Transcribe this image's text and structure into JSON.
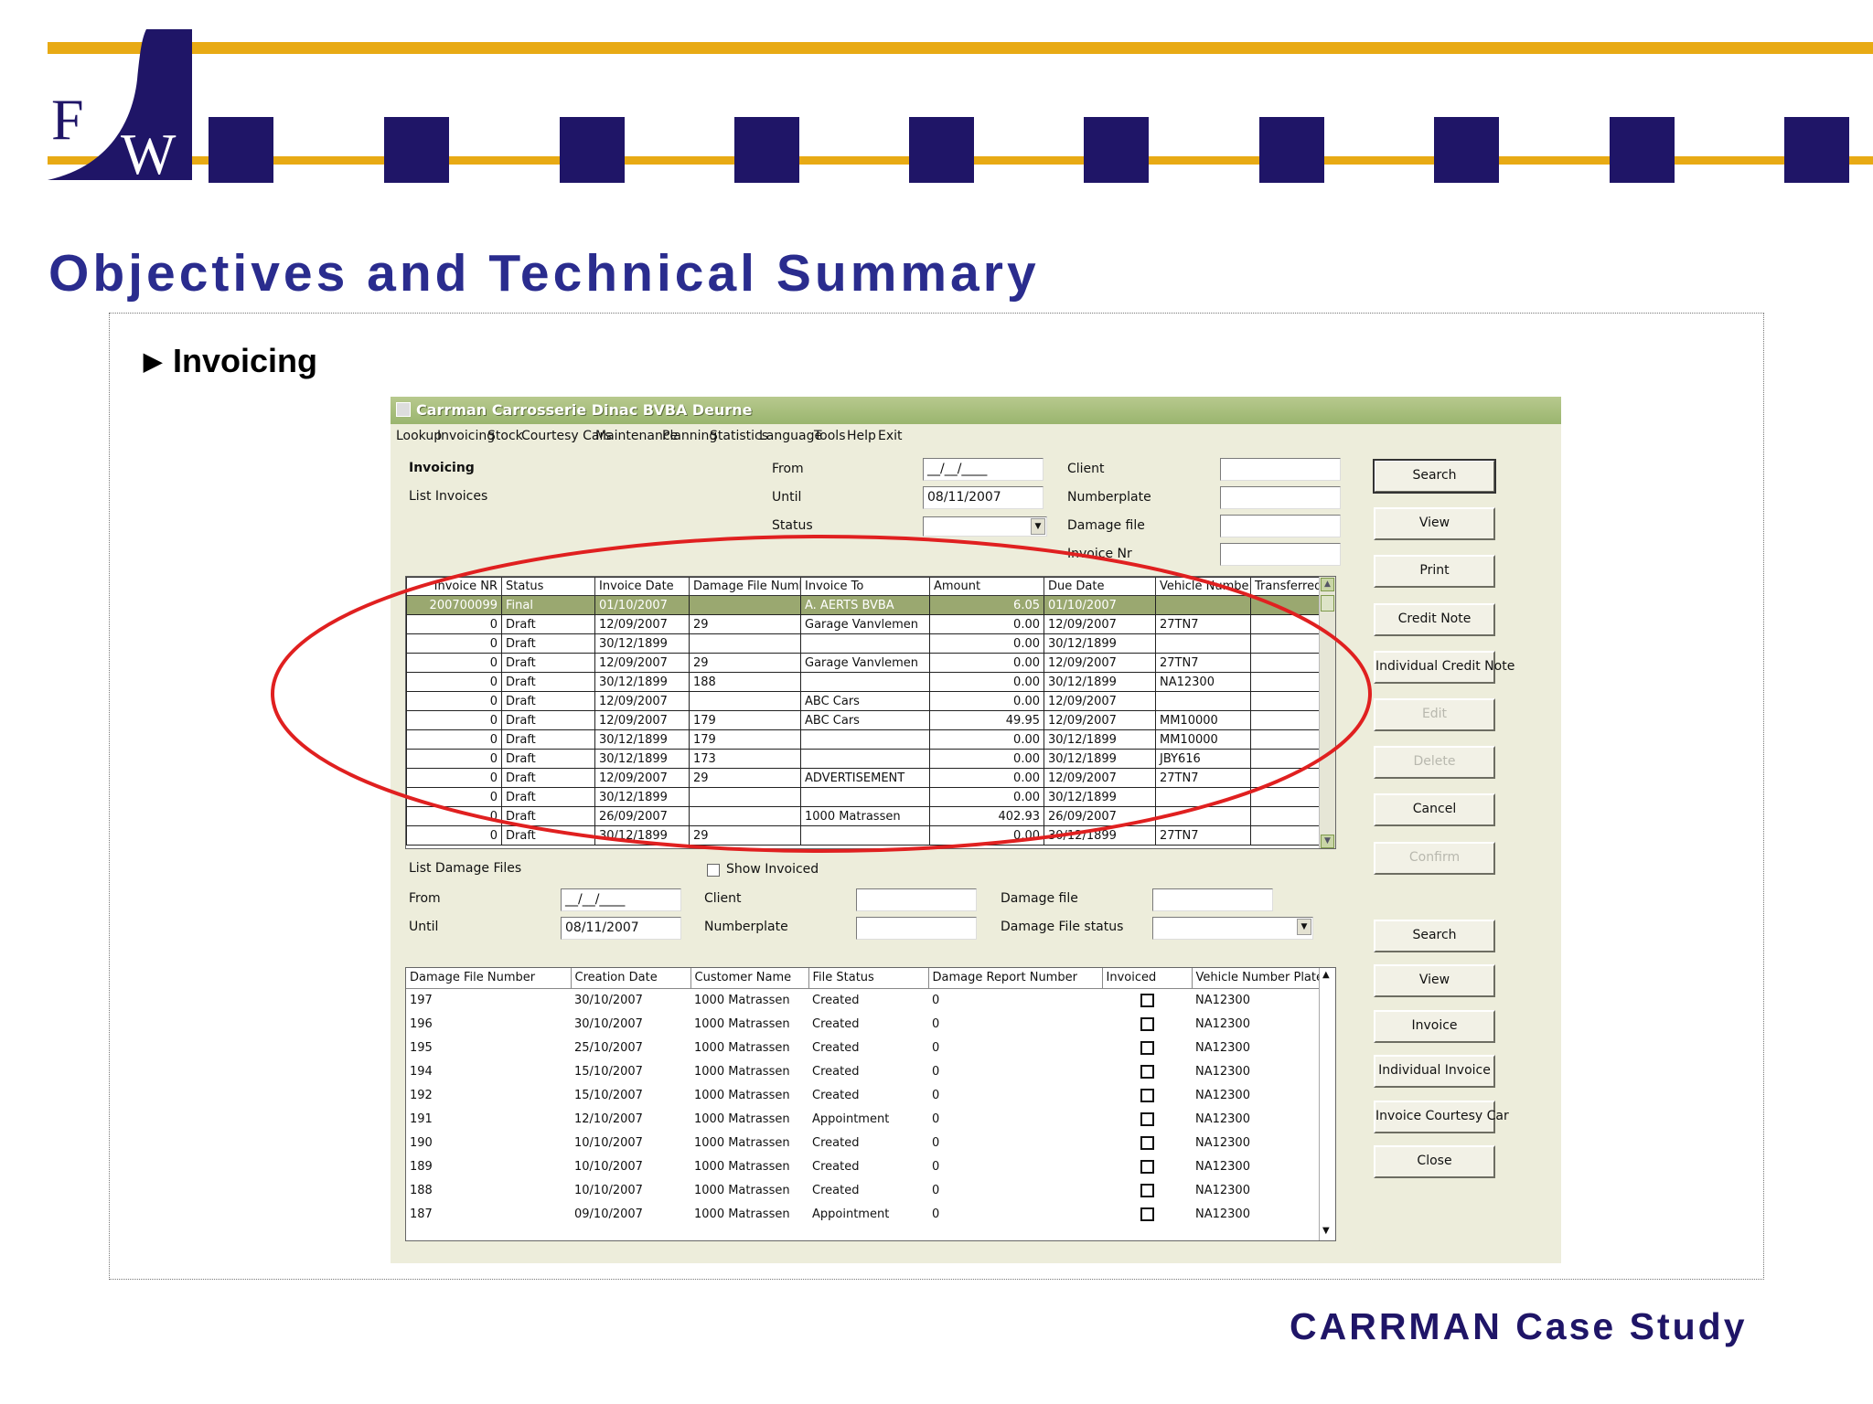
{
  "header": {
    "logo_text": "FW",
    "slide_title": "Objectives and Technical Summary",
    "bullet": "Invoicing",
    "footer": "CARRMAN Case Study",
    "colors": {
      "brand_blue": "#1F1567",
      "accent_gold": "#E8AA14",
      "title_blue": "#2A2C8E",
      "highlight_red": "#E02020"
    }
  },
  "app": {
    "title": "Carrman Carrosserie Dinac BVBA Deurne",
    "menu": [
      "Lookup",
      "Invoicing",
      "Stock",
      "Courtesy Cars",
      "Maintenance",
      "Planning",
      "Statistics",
      "Language",
      "Tools",
      "Help",
      "Exit"
    ],
    "invoicing": {
      "heading": "Invoicing",
      "subheading": "List Invoices",
      "from_label": "From",
      "from_value": "__/__/____",
      "until_label": "Until",
      "until_value": "08/11/2007",
      "status_label": "Status",
      "status_value": "",
      "client_label": "Client",
      "client_value": "",
      "numberplate_label": "Numberplate",
      "numberplate_value": "",
      "damage_file_label": "Damage file",
      "damage_file_value": "",
      "invoice_nr_label": "Invoice Nr",
      "invoice_nr_value": "",
      "columns": [
        "Invoice NR",
        "Status",
        "Invoice Date",
        "Damage File Numb",
        "Invoice To",
        "Amount",
        "Due Date",
        "Vehicle Numbe",
        "Transferred"
      ],
      "rows": [
        [
          "200700099",
          "Final",
          "01/10/2007",
          "",
          "A. AERTS BVBA",
          "6.05",
          "01/10/2007",
          "",
          ""
        ],
        [
          "0",
          "Draft",
          "12/09/2007",
          "29",
          "Garage Vanvlemen",
          "0.00",
          "12/09/2007",
          "27TN7",
          ""
        ],
        [
          "0",
          "Draft",
          "30/12/1899",
          "",
          "",
          "0.00",
          "30/12/1899",
          "",
          ""
        ],
        [
          "0",
          "Draft",
          "12/09/2007",
          "29",
          "Garage Vanvlemen",
          "0.00",
          "12/09/2007",
          "27TN7",
          ""
        ],
        [
          "0",
          "Draft",
          "30/12/1899",
          "188",
          "",
          "0.00",
          "30/12/1899",
          "NA12300",
          ""
        ],
        [
          "0",
          "Draft",
          "12/09/2007",
          "",
          "ABC Cars",
          "0.00",
          "12/09/2007",
          "",
          ""
        ],
        [
          "0",
          "Draft",
          "12/09/2007",
          "179",
          "ABC Cars",
          "49.95",
          "12/09/2007",
          "MM10000",
          ""
        ],
        [
          "0",
          "Draft",
          "30/12/1899",
          "179",
          "",
          "0.00",
          "30/12/1899",
          "MM10000",
          ""
        ],
        [
          "0",
          "Draft",
          "30/12/1899",
          "173",
          "",
          "0.00",
          "30/12/1899",
          "JBY616",
          ""
        ],
        [
          "0",
          "Draft",
          "12/09/2007",
          "29",
          "ADVERTISEMENT",
          "0.00",
          "12/09/2007",
          "27TN7",
          ""
        ],
        [
          "0",
          "Draft",
          "30/12/1899",
          "",
          "",
          "0.00",
          "30/12/1899",
          "",
          ""
        ],
        [
          "0",
          "Draft",
          "26/09/2007",
          "",
          "1000 Matrassen",
          "402.93",
          "26/09/2007",
          "",
          ""
        ],
        [
          "0",
          "Draft",
          "30/12/1899",
          "29",
          "",
          "0.00",
          "30/12/1899",
          "27TN7",
          ""
        ]
      ]
    },
    "damage": {
      "heading": "List Damage Files",
      "show_invoiced_label": "Show Invoiced",
      "from_label": "From",
      "from_value": "__/__/____",
      "until_label": "Until",
      "until_value": "08/11/2007",
      "client_label": "Client",
      "client_value": "",
      "numberplate_label": "Numberplate",
      "numberplate_value": "",
      "damage_file_label": "Damage file",
      "damage_file_value": "",
      "damage_file_status_label": "Damage File status",
      "damage_file_status_value": "",
      "columns": [
        "Damage File Number",
        "Creation Date",
        "Customer Name",
        "File Status",
        "Damage Report Number",
        "Invoiced",
        "Vehicle Number Plate"
      ],
      "rows": [
        [
          "197",
          "30/10/2007",
          "1000 Matrassen",
          "Created",
          "0",
          "",
          "NA12300"
        ],
        [
          "196",
          "30/10/2007",
          "1000 Matrassen",
          "Created",
          "0",
          "",
          "NA12300"
        ],
        [
          "195",
          "25/10/2007",
          "1000 Matrassen",
          "Created",
          "0",
          "",
          "NA12300"
        ],
        [
          "194",
          "15/10/2007",
          "1000 Matrassen",
          "Created",
          "0",
          "",
          "NA12300"
        ],
        [
          "192",
          "15/10/2007",
          "1000 Matrassen",
          "Created",
          "0",
          "",
          "NA12300"
        ],
        [
          "191",
          "12/10/2007",
          "1000 Matrassen",
          "Appointment",
          "0",
          "",
          "NA12300"
        ],
        [
          "190",
          "10/10/2007",
          "1000 Matrassen",
          "Created",
          "0",
          "",
          "NA12300"
        ],
        [
          "189",
          "10/10/2007",
          "1000 Matrassen",
          "Created",
          "0",
          "",
          "NA12300"
        ],
        [
          "188",
          "10/10/2007",
          "1000 Matrassen",
          "Created",
          "0",
          "",
          "NA12300"
        ],
        [
          "187",
          "09/10/2007",
          "1000 Matrassen",
          "Appointment",
          "0",
          "",
          "NA12300"
        ]
      ]
    },
    "buttons_top": [
      {
        "label": "Search",
        "enabled": true
      },
      {
        "label": "View",
        "enabled": true
      },
      {
        "label": "Print",
        "enabled": true
      },
      {
        "label": "Credit Note",
        "enabled": true
      },
      {
        "label": "Individual Credit Note",
        "enabled": true
      },
      {
        "label": "Edit",
        "enabled": false
      },
      {
        "label": "Delete",
        "enabled": false
      },
      {
        "label": "Cancel",
        "enabled": true
      },
      {
        "label": "Confirm",
        "enabled": false
      }
    ],
    "buttons_bottom": [
      {
        "label": "Search",
        "enabled": true
      },
      {
        "label": "View",
        "enabled": true
      },
      {
        "label": "Invoice",
        "enabled": true
      },
      {
        "label": "Individual Invoice",
        "enabled": true
      },
      {
        "label": "Invoice Courtesy Car",
        "enabled": true
      },
      {
        "label": "Close",
        "enabled": true
      }
    ]
  }
}
